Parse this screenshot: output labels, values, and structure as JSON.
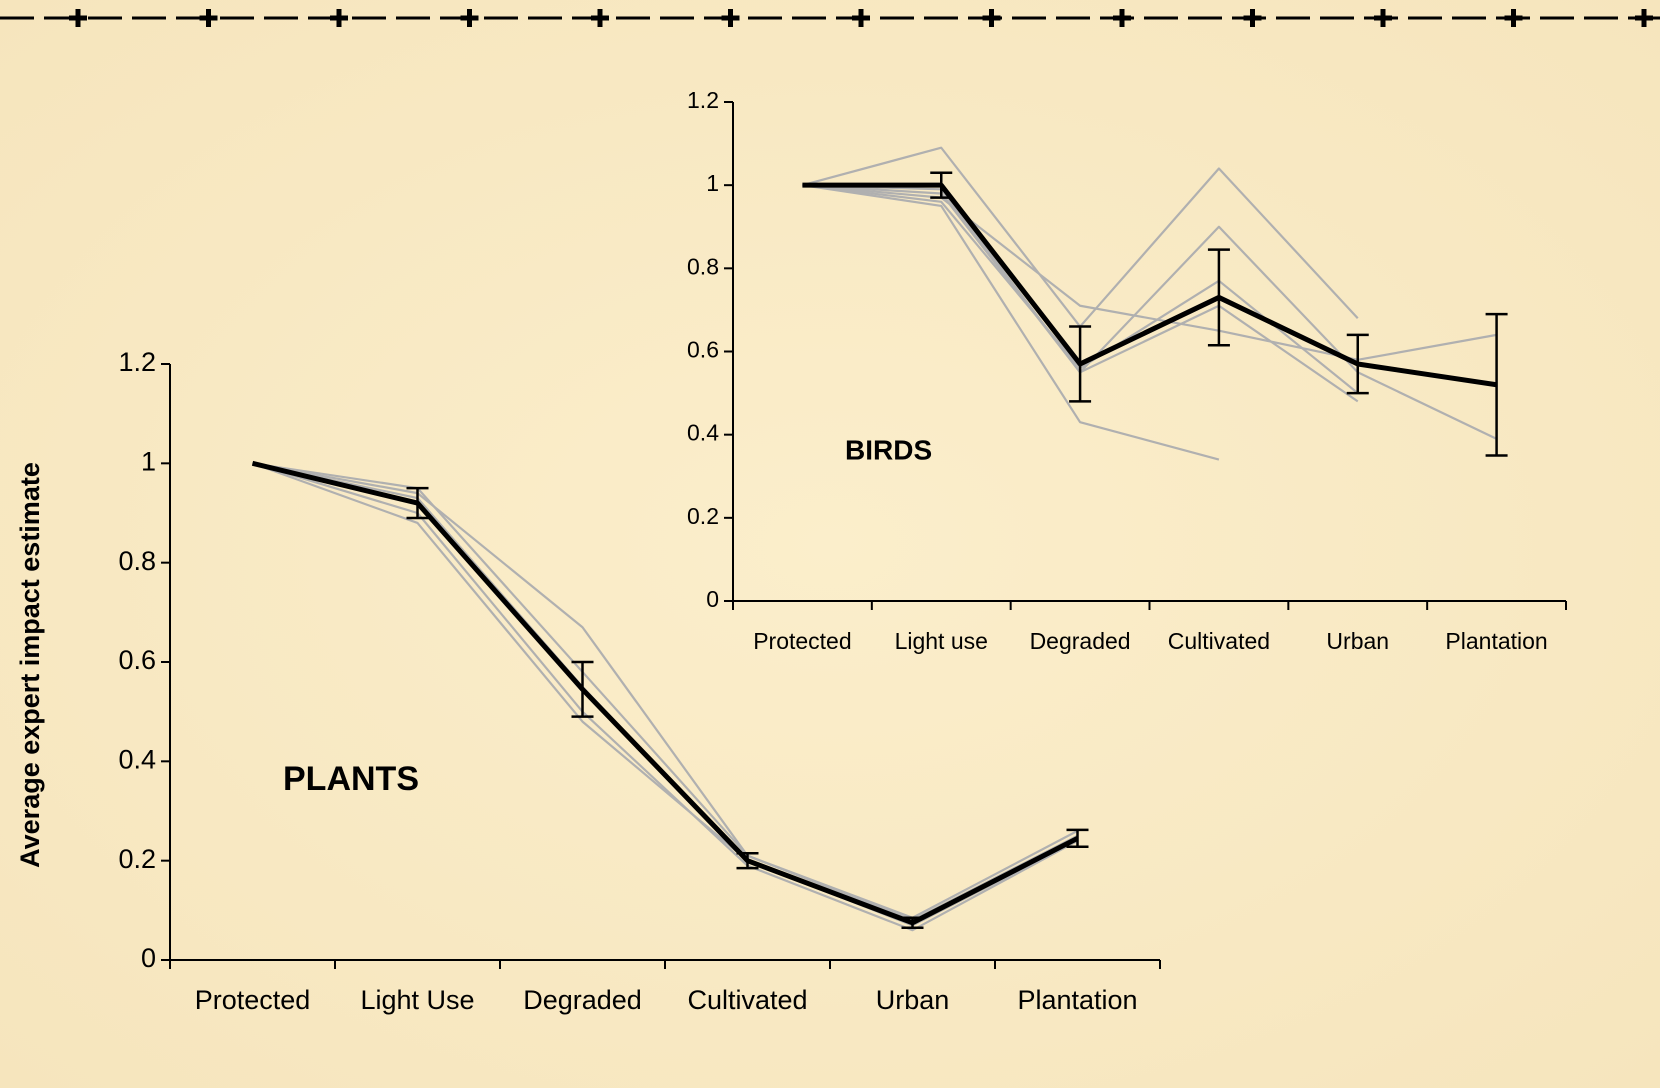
{
  "chart_data": [
    {
      "type": "line",
      "annotation": "PLANTS",
      "ylabel": "Average expert impact estimate",
      "categories": [
        "Protected",
        "Light Use",
        "Degraded",
        "Cultivated",
        "Urban",
        "Plantation"
      ],
      "ylim": [
        0,
        1.2
      ],
      "yticks": [
        0,
        0.2,
        0.4,
        0.6,
        0.8,
        1,
        1.2
      ],
      "series": [
        {
          "color": "#b0b0b0",
          "values": [
            1,
            0.94,
            0.67,
            0.21,
            0.08,
            0.25
          ]
        },
        {
          "color": "#b0b0b0",
          "values": [
            1,
            0.93,
            0.55,
            0.2,
            0.07,
            0.24
          ]
        },
        {
          "color": "#b0b0b0",
          "values": [
            1,
            0.9,
            0.5,
            0.19,
            0.06,
            0.24
          ]
        },
        {
          "color": "#b0b0b0",
          "values": [
            1,
            0.88,
            0.48,
            0.2,
            0.07,
            0.25
          ]
        },
        {
          "color": "#b0b0b0",
          "values": [
            1,
            0.95,
            0.58,
            0.21,
            0.085,
            0.26
          ]
        },
        {
          "color": "#000000",
          "values": [
            1,
            0.92,
            0.545,
            0.2,
            0.075,
            0.245
          ],
          "errors": [
            null,
            0.03,
            0.055,
            0.015,
            0.01,
            0.017
          ]
        }
      ]
    },
    {
      "type": "line",
      "annotation": "BIRDS",
      "categories": [
        "Protected",
        "Light use",
        "Degraded",
        "Cultivated",
        "Urban",
        "Plantation"
      ],
      "ylim": [
        0,
        1.2
      ],
      "yticks": [
        0,
        0.2,
        0.4,
        0.6,
        0.8,
        1,
        1.2
      ],
      "series": [
        {
          "color": "#b0b0b0",
          "values": [
            1,
            1.09,
            0.66,
            1.04,
            0.68,
            null
          ]
        },
        {
          "color": "#b0b0b0",
          "values": [
            1,
            0.95,
            0.43,
            0.34,
            null,
            null
          ]
        },
        {
          "color": "#b0b0b0",
          "values": [
            1,
            0.97,
            0.71,
            0.65,
            0.58,
            0.64
          ]
        },
        {
          "color": "#b0b0b0",
          "values": [
            1,
            0.98,
            0.55,
            0.9,
            0.55,
            0.39
          ]
        },
        {
          "color": "#b0b0b0",
          "values": [
            1,
            0.96,
            0.56,
            0.77,
            0.5,
            null
          ]
        },
        {
          "color": "#b0b0b0",
          "values": [
            1,
            0.99,
            0.55,
            0.71,
            0.48,
            null
          ]
        },
        {
          "color": "#000000",
          "values": [
            1,
            1,
            0.57,
            0.73,
            0.57,
            0.52
          ],
          "errors": [
            null,
            0.03,
            0.09,
            0.115,
            0.07,
            0.17
          ]
        }
      ]
    }
  ]
}
